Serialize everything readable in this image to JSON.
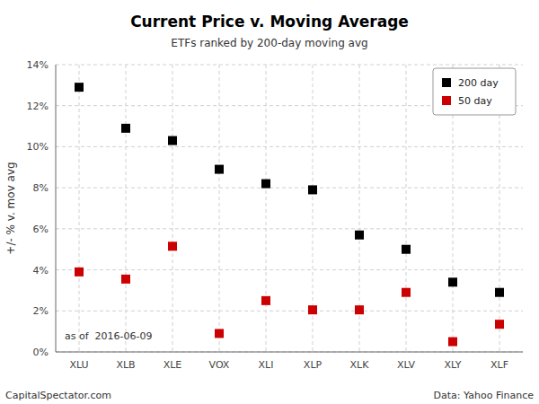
{
  "chart_data": {
    "type": "scatter",
    "title": "Current Price v. Moving Average",
    "subtitle": "ETFs ranked by 200-day moving avg",
    "ylabel": "+/- % v. mov avg",
    "annotations": [
      "as of  2016-06-09",
      "CapitalSpectator.com",
      "Data: Yahoo Finance"
    ],
    "categories": [
      "XLU",
      "XLB",
      "XLE",
      "VOX",
      "XLI",
      "XLP",
      "XLK",
      "XLV",
      "XLY",
      "XLF"
    ],
    "series": [
      {
        "name": "200 day",
        "color": "#000000",
        "marker": "square",
        "values": [
          12.9,
          10.9,
          10.3,
          8.9,
          8.2,
          7.9,
          5.7,
          5.0,
          3.4,
          2.9
        ]
      },
      {
        "name": "50 day",
        "color": "#cc0000",
        "marker": "square",
        "values": [
          3.9,
          3.55,
          5.15,
          0.9,
          2.5,
          2.05,
          2.05,
          2.9,
          0.5,
          1.35
        ]
      }
    ],
    "ylim": [
      0,
      14
    ],
    "yticks": [
      {
        "value": 0,
        "label": "0%"
      },
      {
        "value": 2,
        "label": "2%"
      },
      {
        "value": 4,
        "label": "4%"
      },
      {
        "value": 6,
        "label": "6%"
      },
      {
        "value": 8,
        "label": "8%"
      },
      {
        "value": 10,
        "label": "10%"
      },
      {
        "value": 12,
        "label": "12%"
      },
      {
        "value": 14,
        "label": "14%"
      }
    ],
    "grid": true,
    "legend": "upper right"
  }
}
